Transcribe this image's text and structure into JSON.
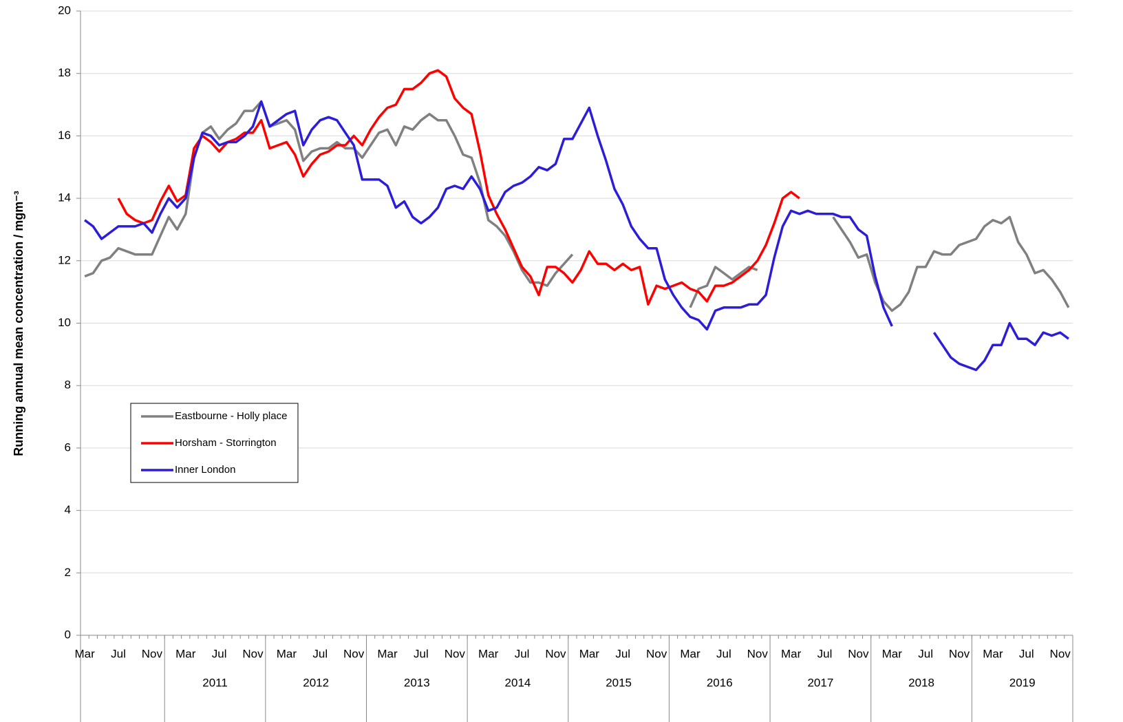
{
  "chart_data": {
    "type": "line",
    "y_label": "Running annual mean concentration / mgm⁻³",
    "categories": [
      "Mar",
      null,
      null,
      null,
      "Jul",
      null,
      null,
      null,
      "Nov",
      null,
      null,
      null,
      "Mar",
      null,
      null,
      null,
      "Jul",
      null,
      null,
      null,
      "Nov",
      null,
      null,
      null,
      "Mar",
      null,
      null,
      null,
      "Jul",
      null,
      null,
      null,
      "Nov",
      null,
      null,
      null,
      "Mar",
      null,
      null,
      null,
      "Jul",
      null,
      null,
      null,
      "Nov",
      null,
      null,
      null,
      "Mar",
      null,
      null,
      null,
      "Jul",
      null,
      null,
      null,
      "Nov",
      null,
      null,
      null,
      "Mar",
      null,
      null,
      null,
      "Jul",
      null,
      null,
      null,
      "Nov",
      null,
      null,
      null,
      "Mar",
      null,
      null,
      null,
      "Jul",
      null,
      null,
      null,
      "Nov",
      null,
      null,
      null,
      "Mar",
      null,
      null,
      null,
      "Jul",
      null,
      null,
      null,
      "Nov",
      null,
      null,
      null,
      "Mar",
      null,
      null,
      null,
      "Jul",
      null,
      null,
      null,
      "Nov",
      null,
      null,
      null,
      "Mar",
      null,
      null,
      null,
      "Jul",
      null,
      null,
      null,
      "Nov",
      null
    ],
    "years": [
      null,
      "2011",
      "2012",
      "2013",
      "2014",
      "2015",
      "2016",
      "2017",
      "2018",
      "2019"
    ],
    "series": [
      {
        "name": "Eastbourne - Holly place",
        "color": "#808080",
        "values": [
          11.5,
          11.6,
          12.0,
          12.1,
          12.4,
          12.3,
          12.2,
          12.2,
          12.2,
          12.8,
          13.4,
          13.0,
          13.5,
          15.3,
          16.1,
          16.3,
          15.9,
          16.2,
          16.4,
          16.8,
          16.8,
          17.1,
          16.3,
          16.4,
          16.5,
          16.2,
          15.2,
          15.5,
          15.6,
          15.6,
          15.8,
          15.6,
          15.6,
          15.3,
          15.7,
          16.1,
          16.2,
          15.7,
          16.3,
          16.2,
          16.5,
          16.7,
          16.5,
          16.5,
          16.0,
          15.4,
          15.3,
          14.5,
          13.3,
          13.1,
          12.8,
          12.3,
          11.7,
          11.3,
          11.3,
          11.2,
          11.6,
          11.9,
          12.2,
          null,
          null,
          null,
          null,
          null,
          null,
          null,
          null,
          null,
          null,
          null,
          null,
          null,
          10.5,
          11.1,
          11.2,
          11.8,
          11.6,
          11.4,
          11.6,
          11.8,
          11.7,
          null,
          null,
          null,
          null,
          null,
          null,
          null,
          null,
          13.4,
          13.0,
          12.6,
          12.1,
          12.2,
          11.3,
          10.7,
          10.4,
          10.6,
          11.0,
          11.8,
          11.8,
          12.3,
          12.2,
          12.2,
          12.5,
          12.6,
          12.7,
          13.1,
          13.3,
          13.2,
          13.4,
          12.6,
          12.2,
          11.6,
          11.7,
          11.4,
          11.0,
          10.5
        ]
      },
      {
        "name": "Horsham - Storrington",
        "color": "#ff0000",
        "values": [
          null,
          null,
          null,
          null,
          14.0,
          13.5,
          13.3,
          13.2,
          13.3,
          13.9,
          14.4,
          13.9,
          14.1,
          15.6,
          16.0,
          15.8,
          15.5,
          15.8,
          15.9,
          16.1,
          16.1,
          16.5,
          15.6,
          15.7,
          15.8,
          15.4,
          14.7,
          15.1,
          15.4,
          15.5,
          15.7,
          15.7,
          16.0,
          15.7,
          16.2,
          16.6,
          16.9,
          17.0,
          17.5,
          17.5,
          17.7,
          18.0,
          18.1,
          17.9,
          17.2,
          16.9,
          16.7,
          15.5,
          14.1,
          13.5,
          13.0,
          12.4,
          11.8,
          11.5,
          10.9,
          11.8,
          11.8,
          11.6,
          11.3,
          11.7,
          12.3,
          11.9,
          11.9,
          11.7,
          11.9,
          11.7,
          11.8,
          10.6,
          11.2,
          11.1,
          11.2,
          11.3,
          11.1,
          11.0,
          10.7,
          11.2,
          11.2,
          11.3,
          11.5,
          11.7,
          12.0,
          12.5,
          13.2,
          14.0,
          14.2,
          14.0,
          null,
          null,
          null,
          null,
          null,
          null,
          null,
          null,
          null,
          null,
          null,
          null,
          null,
          null,
          null,
          null,
          null,
          null,
          null,
          null,
          null,
          null,
          null,
          null,
          null,
          null,
          null,
          null,
          null,
          null,
          null,
          null
        ]
      },
      {
        "name": "Inner London",
        "color": "#2b1dd8",
        "values": [
          13.3,
          13.1,
          12.7,
          12.9,
          13.1,
          13.1,
          13.1,
          13.2,
          12.9,
          13.5,
          14.0,
          13.7,
          14.0,
          15.3,
          16.1,
          16.0,
          15.7,
          15.8,
          15.8,
          16.0,
          16.3,
          17.1,
          16.3,
          16.5,
          16.7,
          16.8,
          15.7,
          16.2,
          16.5,
          16.6,
          16.5,
          16.1,
          15.7,
          14.6,
          14.6,
          14.6,
          14.4,
          13.7,
          13.9,
          13.4,
          13.2,
          13.4,
          13.7,
          14.3,
          14.4,
          14.3,
          14.7,
          14.3,
          13.6,
          13.7,
          14.2,
          14.4,
          14.5,
          14.7,
          15.0,
          14.9,
          15.1,
          15.9,
          15.9,
          16.4,
          16.9,
          16.0,
          15.2,
          14.3,
          13.8,
          13.1,
          12.7,
          12.4,
          12.4,
          11.4,
          10.9,
          10.5,
          10.2,
          10.1,
          9.8,
          10.4,
          10.5,
          10.5,
          10.5,
          10.6,
          10.6,
          10.9,
          12.1,
          13.1,
          13.6,
          13.5,
          13.6,
          13.5,
          13.5,
          13.5,
          13.4,
          13.4,
          13.0,
          12.8,
          11.5,
          10.5,
          9.9,
          null,
          null,
          null,
          null,
          9.7,
          9.3,
          8.9,
          8.7,
          8.6,
          8.5,
          8.8,
          9.3,
          9.3,
          10.0,
          9.5,
          9.5,
          9.3,
          9.7,
          9.6,
          9.7,
          9.5
        ]
      }
    ],
    "ylim": [
      0,
      20
    ],
    "yticks": [
      0,
      2,
      4,
      6,
      8,
      10,
      12,
      14,
      16,
      18,
      20
    ],
    "grid": true,
    "legend_position": "center-left"
  }
}
